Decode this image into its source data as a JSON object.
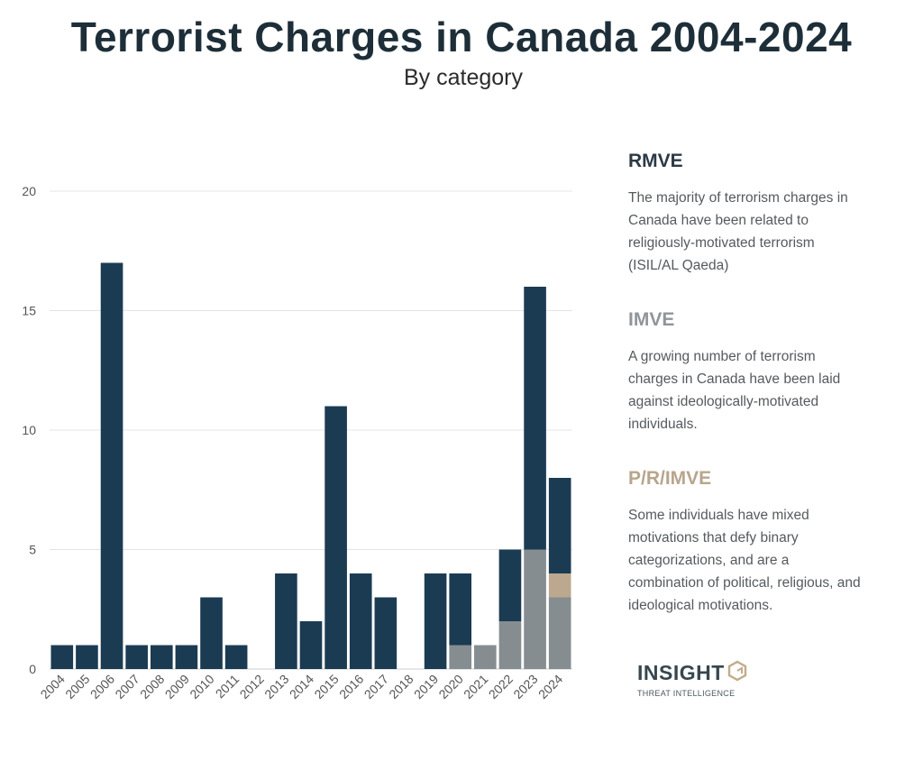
{
  "title": "Terrorist Charges in Canada 2004-2024",
  "subtitle": "By category",
  "chart_data": {
    "type": "bar",
    "stacked": true,
    "categories": [
      "2004",
      "2005",
      "2006",
      "2007",
      "2008",
      "2009",
      "2010",
      "2011",
      "2012",
      "2013",
      "2014",
      "2015",
      "2016",
      "2017",
      "2018",
      "2019",
      "2020",
      "2021",
      "2022",
      "2023",
      "2024"
    ],
    "series": [
      {
        "name": "IMVE",
        "color": "#858d91",
        "values": [
          0,
          0,
          0,
          0,
          0,
          0,
          0,
          0,
          0,
          0,
          0,
          0,
          0,
          0,
          0,
          0,
          1,
          1,
          2,
          5,
          3
        ]
      },
      {
        "name": "P/R/IMVE",
        "color": "#bca88f",
        "values": [
          0,
          0,
          0,
          0,
          0,
          0,
          0,
          0,
          0,
          0,
          0,
          0,
          0,
          0,
          0,
          0,
          0,
          0,
          0,
          0,
          1
        ]
      },
      {
        "name": "RMVE",
        "color": "#1b3b53",
        "values": [
          1,
          1,
          17,
          1,
          1,
          1,
          3,
          1,
          0,
          4,
          2,
          11,
          4,
          3,
          0,
          4,
          3,
          0,
          3,
          11,
          4
        ]
      }
    ],
    "yticks": [
      0,
      5,
      10,
      15,
      20
    ],
    "ylim": [
      0,
      20
    ],
    "grid": true,
    "legend_placement": "right"
  },
  "legend": {
    "rmve": {
      "heading": "RMVE",
      "color": "#2b3a44",
      "lines": [
        "The majority of terrorism charges in",
        "Canada have been related to",
        "religiously-motivated terrorism",
        "(ISIL/AL Qaeda)"
      ]
    },
    "imve": {
      "heading": "IMVE",
      "color": "#8f969a",
      "lines": [
        "A growing number of terrorism",
        "charges in Canada have been laid",
        "against ideologically-motivated",
        "individuals."
      ]
    },
    "primve": {
      "heading": "P/R/IMVE",
      "color": "#b8a58d",
      "lines": [
        "Some individuals have mixed",
        "motivations that defy binary",
        "categorizations, and are a",
        "combination of political, religious, and",
        "ideological motivations."
      ]
    }
  },
  "logo": {
    "word": "INSIGHT",
    "sub": "THREAT INTELLIGENCE",
    "icon": "insight-logo-icon"
  }
}
